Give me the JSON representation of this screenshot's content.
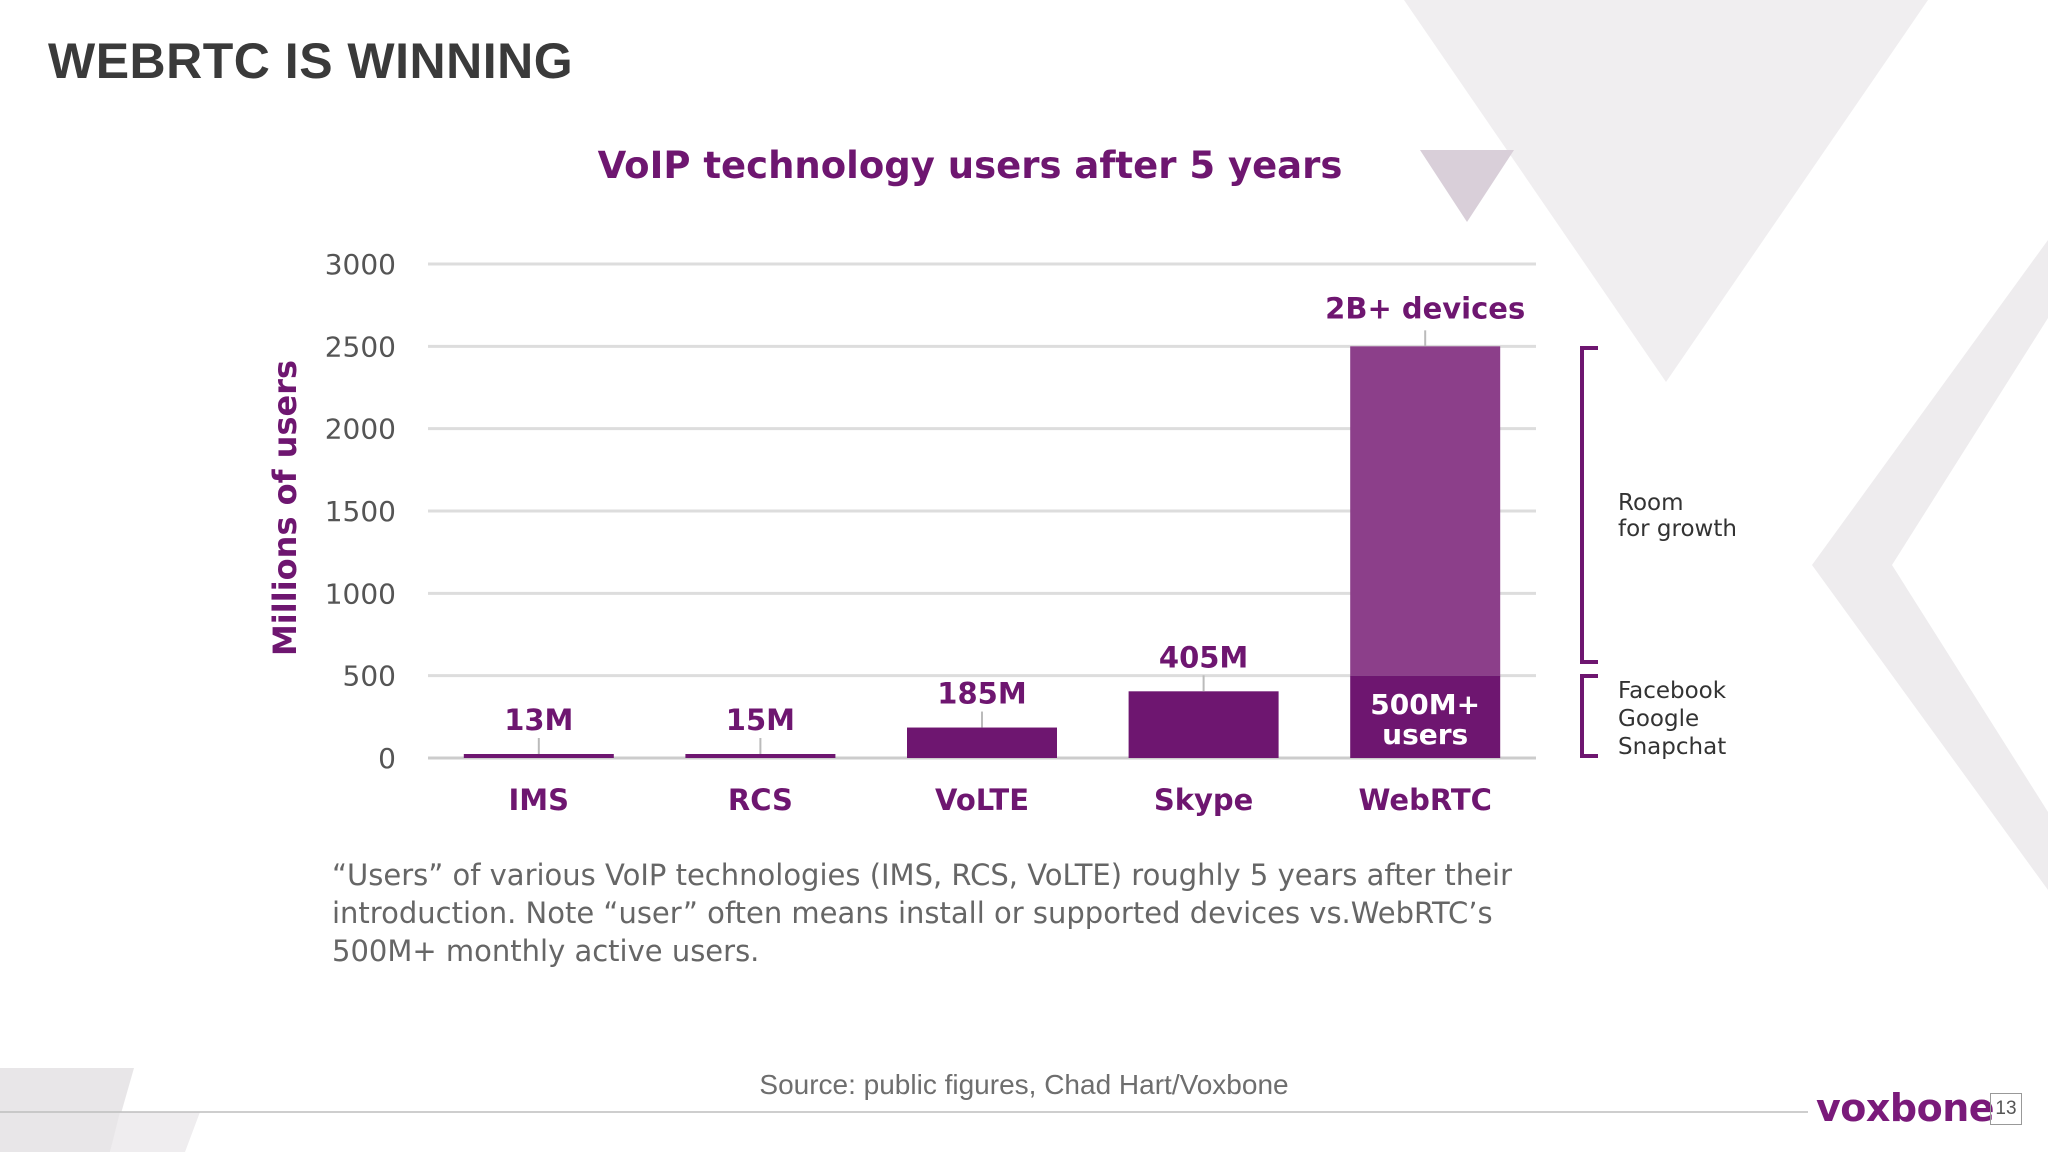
{
  "slide": {
    "title": "WEBRTC IS WINNING",
    "source": "Source: public figures, Chad Hart/Voxbone",
    "brand": "voxbone",
    "page_number": "13"
  },
  "chart_data": {
    "type": "bar",
    "title": "VoIP technology users after 5 years",
    "ylabel": "Millions of users",
    "xlabel": "",
    "ylim": [
      0,
      3000
    ],
    "yticks": [
      0,
      500,
      1000,
      1500,
      2000,
      2500,
      3000
    ],
    "categories": [
      "IMS",
      "RCS",
      "VoLTE",
      "Skype",
      "WebRTC"
    ],
    "values": [
      13,
      15,
      185,
      405,
      500
    ],
    "data_labels": [
      "13M",
      "15M",
      "185M",
      "405M",
      ""
    ],
    "stacked_extra": {
      "category": "WebRTC",
      "value": 2000,
      "total": 2500,
      "label": "2B+ devices"
    },
    "inside_label": [
      "500M+",
      "users"
    ],
    "grid": true,
    "colors": {
      "primary": "#6e1670",
      "secondary": "#8c3f8a",
      "grid": "#dddddd"
    },
    "annotations": {
      "growth": [
        "Room",
        "for growth"
      ],
      "companies": [
        "Facebook",
        "Google",
        "Snapchat"
      ]
    },
    "caption": [
      "“Users” of various VoIP technologies (IMS, RCS, VoLTE) roughly 5 years after their",
      "introduction. Note “user” often means install or supported devices vs.WebRTC’s",
      "500M+ monthly active users."
    ]
  }
}
